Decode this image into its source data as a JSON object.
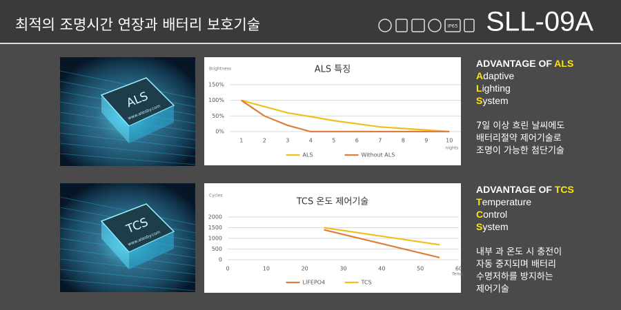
{
  "header": {
    "title": "최적의 조명시간 연장과 배터리 보호기술",
    "model": "SLL-09A",
    "badge": "IP65"
  },
  "chart_data": [
    {
      "type": "line",
      "title": "ALS 특징",
      "y_label": "Brightness",
      "x_label": "nights",
      "categories": [
        "1",
        "2",
        "3",
        "4",
        "5",
        "6",
        "7",
        "8",
        "9",
        "10"
      ],
      "ylim": [
        0,
        150
      ],
      "yticks": [
        {
          "value": 0,
          "label": "0%"
        },
        {
          "value": 50,
          "label": "50%"
        },
        {
          "value": 100,
          "label": "100%"
        },
        {
          "value": 150,
          "label": "150%"
        }
      ],
      "grid": true,
      "series": [
        {
          "name": "ALS",
          "color": "#f2be1a",
          "values": [
            100,
            80,
            60,
            48,
            35,
            25,
            15,
            10,
            5,
            0
          ]
        },
        {
          "name": "Without ALS",
          "color": "#e07b39",
          "values": [
            100,
            50,
            20,
            0,
            0,
            0,
            0,
            0,
            0,
            0
          ]
        }
      ]
    },
    {
      "type": "line",
      "title": "TCS 온도 제어기술",
      "y_label": "Cycles",
      "x_label": "Temp",
      "xlim": [
        0,
        60
      ],
      "xticks": [
        0,
        10,
        20,
        30,
        40,
        50,
        60
      ],
      "ylim": [
        0,
        2000
      ],
      "yticks": [
        0,
        500,
        1000,
        1500,
        2000
      ],
      "grid": true,
      "series": [
        {
          "name": "LIFEPO4",
          "color": "#e07b39",
          "x": [
            25,
            55
          ],
          "values": [
            1400,
            100
          ]
        },
        {
          "name": "TCS",
          "color": "#f2be1a",
          "x": [
            25,
            55
          ],
          "values": [
            1500,
            700
          ]
        }
      ]
    }
  ],
  "sections": [
    {
      "chip_label": "ALS",
      "chip_url": "www.atesby.com",
      "heading_prefix": "ADVANTAGE OF ",
      "heading_key": "ALS",
      "acronym": [
        {
          "initial": "A",
          "rest": "daptive"
        },
        {
          "initial": "L",
          "rest": "ighting"
        },
        {
          "initial": "S",
          "rest": "ystem"
        }
      ],
      "description": [
        "7일 이상 흐린 날씨에도",
        "배터리절약 제어기술로",
        "조명이 가능한 첨단기술"
      ]
    },
    {
      "chip_label": "TCS",
      "chip_url": "www.atesby.com",
      "heading_prefix": "ADVANTAGE OF ",
      "heading_key": "TCS",
      "acronym": [
        {
          "initial": "T",
          "rest": "emperature"
        },
        {
          "initial": "C",
          "rest": "ontrol"
        },
        {
          "initial": "S",
          "rest": "ystem"
        }
      ],
      "description": [
        "내부 과 온도 시 충전이",
        "자동 중지되며 배터리",
        "수명저하를 방지하는",
        "제어기술"
      ]
    }
  ]
}
